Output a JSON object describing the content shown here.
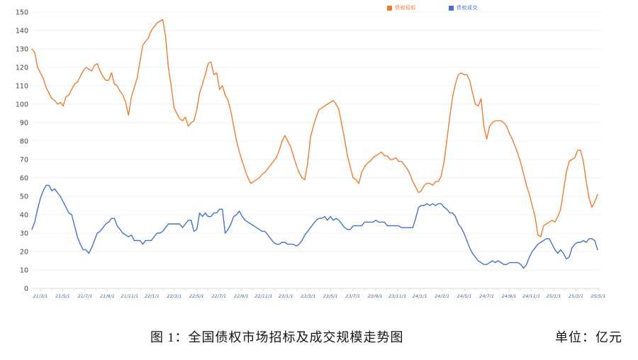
{
  "caption": {
    "title": "图 1：全国债权市场招标及成交规模走势图",
    "unit": "单位：亿元"
  },
  "chart_data": {
    "type": "line",
    "title": "全国债权市场招标及成交规模走势图",
    "xlabel": "",
    "ylabel": "亿元",
    "ylim": [
      0,
      150
    ],
    "grid": true,
    "legend_position": "top",
    "y_ticks": [
      0,
      10,
      20,
      30,
      40,
      50,
      60,
      70,
      80,
      90,
      100,
      110,
      120,
      130,
      140,
      150
    ],
    "x_tick_labels": [
      "21/3/1",
      "21/5/1",
      "21/7/1",
      "21/9/1",
      "21/11/1",
      "22/1/1",
      "22/3/1",
      "22/5/1",
      "22/7/1",
      "22/9/1",
      "22/11/1",
      "23/1/1",
      "23/3/1",
      "23/5/1",
      "23/7/1",
      "23/9/1",
      "23/11/1",
      "24/1/1",
      "24/3/1",
      "24/5/1",
      "24/7/1",
      "24/9/1",
      "24/11/1",
      "25/1/1",
      "25/3/1",
      "25/5/1"
    ],
    "axis_colors": {
      "y_label": "#404040",
      "x_label": "#44679a",
      "grid": "#f2f2f2",
      "baseline": "#d9d9d9",
      "tick": "#c8c8c8"
    },
    "series": [
      {
        "name": "债权招标",
        "color": "#ED7D31",
        "values": [
          130,
          128,
          120,
          117,
          114,
          109,
          106,
          103,
          102,
          100,
          101,
          99,
          104,
          105,
          108,
          111,
          112,
          115,
          118,
          120,
          119,
          118,
          121,
          122,
          118,
          115,
          113,
          113,
          117,
          111,
          110,
          107,
          105,
          101,
          94,
          104,
          109,
          114,
          123,
          132,
          134,
          136,
          140,
          142,
          144,
          145,
          146,
          137,
          120,
          110,
          98,
          95,
          92,
          91,
          93,
          88,
          90,
          91,
          97,
          106,
          111,
          116,
          122,
          123,
          116,
          117,
          108,
          110,
          105,
          102,
          96,
          88,
          80,
          74,
          69,
          64,
          60,
          57,
          58,
          59,
          60,
          62,
          63,
          65,
          67,
          69,
          71,
          75,
          80,
          83,
          80,
          77,
          72,
          67,
          63,
          60,
          59,
          68,
          82,
          88,
          93,
          97,
          98,
          99,
          100,
          101,
          102,
          100,
          97,
          89,
          81,
          72,
          66,
          60,
          59,
          57,
          63,
          66,
          68,
          69,
          71,
          72,
          73,
          74,
          72,
          72,
          70,
          70,
          71,
          69,
          69,
          67,
          65,
          62,
          58,
          55,
          52,
          53,
          56,
          57,
          57,
          56,
          58,
          58,
          61,
          69,
          81,
          93,
          104,
          111,
          116,
          117,
          116,
          116,
          113,
          106,
          100,
          99,
          103,
          88,
          81,
          88,
          90,
          91,
          91,
          91,
          90,
          88,
          84,
          81,
          77,
          73,
          68,
          62,
          56,
          51,
          45,
          39,
          29,
          28,
          34,
          35,
          36,
          37,
          36,
          39,
          43,
          53,
          63,
          69,
          70,
          71,
          75,
          75,
          69,
          58,
          49,
          44,
          47,
          51
        ]
      },
      {
        "name": "债权成交",
        "color": "#4472C4",
        "values": [
          32,
          36,
          43,
          49,
          53,
          56,
          56,
          53,
          54,
          52,
          50,
          47,
          44,
          41,
          40,
          34,
          28,
          24,
          21,
          21,
          19,
          22,
          26,
          30,
          31,
          33,
          35,
          36,
          38,
          38,
          34,
          32,
          30,
          29,
          28,
          29,
          26,
          26,
          26,
          24,
          26,
          26,
          26,
          28,
          30,
          30,
          31,
          33,
          35,
          35,
          35,
          35,
          35,
          33,
          35,
          37,
          37,
          31,
          32,
          41,
          39,
          41,
          39,
          39,
          41,
          41,
          43,
          43,
          30,
          32,
          35,
          39,
          40,
          42,
          39,
          37,
          36,
          35,
          34,
          33,
          32,
          31,
          31,
          29,
          27,
          25,
          24,
          24,
          25,
          25,
          24,
          24,
          24,
          23,
          24,
          26,
          29,
          31,
          33,
          35,
          37,
          38,
          38,
          39,
          37,
          39,
          37,
          38,
          37,
          35,
          33,
          32,
          32,
          34,
          34,
          34,
          34,
          36,
          36,
          36,
          36,
          37,
          36,
          36,
          36,
          34,
          34,
          34,
          34,
          34,
          33,
          33,
          33,
          33,
          33,
          38,
          44,
          45,
          45,
          46,
          45,
          46,
          45,
          46,
          46,
          44,
          43,
          41,
          41,
          39,
          35,
          33,
          30,
          26,
          22,
          19,
          17,
          15,
          14,
          13,
          13,
          14,
          15,
          14,
          15,
          14,
          13,
          13,
          14,
          14,
          14,
          14,
          13,
          11,
          13,
          17,
          20,
          22,
          24,
          25,
          26,
          27,
          27,
          24,
          21,
          19,
          21,
          19,
          16,
          17,
          22,
          24,
          25,
          25,
          26,
          25,
          27,
          27,
          26,
          21
        ]
      }
    ]
  }
}
